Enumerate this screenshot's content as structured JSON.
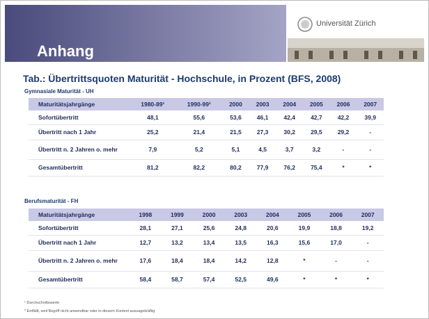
{
  "header": {
    "logo": "Universität Zürich",
    "title": "Anhang"
  },
  "heading": "Tab.: Übertrittsquoten Maturität - Hochschule, in Prozent (BFS, 2008)",
  "tables": [
    {
      "caption": "Gymnasiale Maturität - UH",
      "columns": [
        "Maturitätsjahrgänge",
        "1980-89¹",
        "1990-99¹",
        "2000",
        "2003",
        "2004",
        "2005",
        "2006",
        "2007"
      ],
      "rows": [
        [
          "Sofortübertritt",
          "48,1",
          "55,6",
          "53,6",
          "46,1",
          "42,4",
          "42,7",
          "42,2",
          "39,9"
        ],
        [
          "Übertritt nach 1 Jahr",
          "25,2",
          "21,4",
          "21,5",
          "27,3",
          "30,2",
          "29,5",
          "29,2",
          "-"
        ],
        [
          "Übertritt n. 2 Jahren o. mehr",
          "7,9",
          "5,2",
          "5,1",
          "4,5",
          "3,7",
          "3,2",
          "-",
          "-"
        ],
        [
          "Gesamtübertritt",
          "81,2",
          "82,2",
          "80,2",
          "77,9",
          "76,2",
          "75,4",
          "*",
          "*"
        ]
      ]
    },
    {
      "caption": "Berufsmaturität - FH",
      "columns": [
        "Maturitätsjahrgänge",
        "1998",
        "1999",
        "2000",
        "2003",
        "2004",
        "2005",
        "2006",
        "2007"
      ],
      "rows": [
        [
          "Sofortübertritt",
          "28,1",
          "27,1",
          "25,6",
          "24,8",
          "20,6",
          "19,9",
          "18,8",
          "19,2"
        ],
        [
          "Übertritt nach 1 Jahr",
          "12,7",
          "13,2",
          "13,4",
          "13,5",
          "16,3",
          "15,6",
          "17,0",
          "-"
        ],
        [
          "Übertritt n. 2 Jahren o. mehr",
          "17,6",
          "18,4",
          "18,4",
          "14,2",
          "12,8",
          "*",
          "-",
          "-"
        ],
        [
          "Gesamtübertritt",
          "58,4",
          "58,7",
          "57,4",
          "52,5",
          "49,6",
          "*",
          "*",
          "*"
        ]
      ]
    }
  ],
  "footnotes": [
    "¹ Durchschnittswerte",
    "* Entfällt, weil Begriff nicht anwendbar oder in diesem Kontext aussagekräftig"
  ]
}
